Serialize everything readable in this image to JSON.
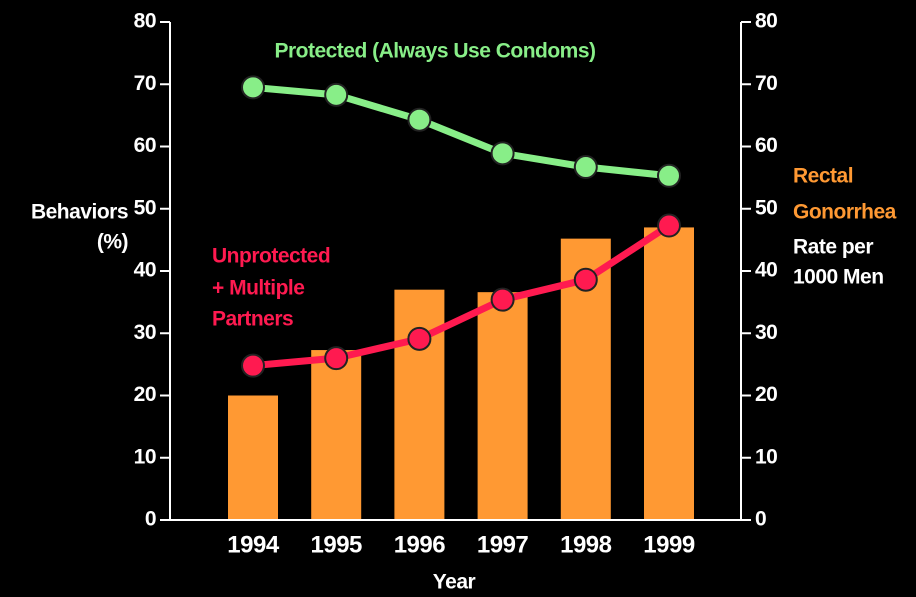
{
  "chart_data": {
    "type": "bar",
    "title": "Protected (Always Use Condoms)",
    "xlabel": "Year",
    "ylabel": [
      "Behaviors",
      "(%)"
    ],
    "y2label": {
      "highlight": [
        "Rectal",
        "Gonorrhea"
      ],
      "rest": [
        "Rate per",
        "1000 Men"
      ]
    },
    "annotation": [
      "Unprotected",
      "+ Multiple",
      "Partners"
    ],
    "categories": [
      "1994",
      "1995",
      "1996",
      "1997",
      "1998",
      "1999"
    ],
    "series": [
      {
        "name": "Rectal Gonorrhea",
        "type": "bar",
        "axis": "y2",
        "color": "#ff9933",
        "values": [
          20,
          27.3,
          37,
          36.6,
          45.2,
          47
        ]
      },
      {
        "name": "Protected (Always Use Condoms)",
        "type": "line",
        "color": "#88ee88",
        "values": [
          69.5,
          68.3,
          64.3,
          58.9,
          56.7,
          55.3
        ]
      },
      {
        "name": "Unprotected + Multiple Partners",
        "type": "line",
        "color": "#ff1a50",
        "values": [
          24.8,
          26,
          29.1,
          35.4,
          38.6,
          47.3
        ]
      }
    ],
    "ylim": [
      0,
      80
    ],
    "yticks": [
      0,
      10,
      20,
      30,
      40,
      50,
      60,
      70,
      80
    ],
    "y2lim": [
      0,
      80
    ],
    "y2ticks": [
      0,
      10,
      20,
      30,
      40,
      50,
      60,
      70,
      80
    ]
  }
}
